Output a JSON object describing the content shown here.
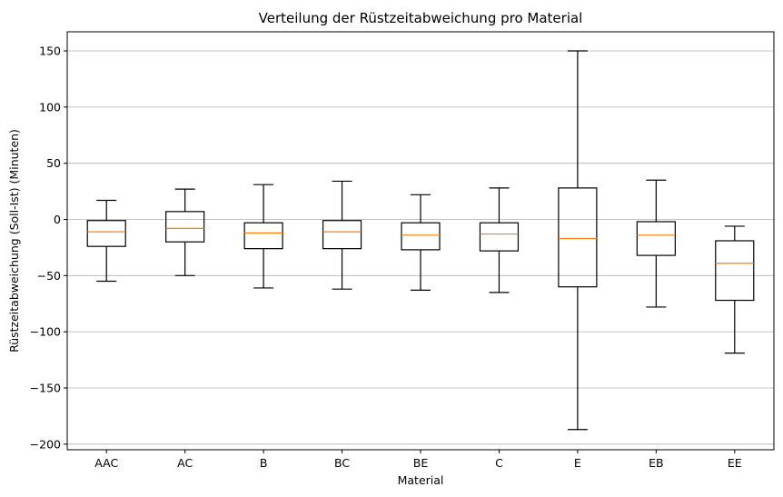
{
  "chart_data": {
    "type": "boxplot",
    "title": "Verteilung der Rüstzeitabweichung pro Material",
    "xlabel": "Material",
    "ylabel": "Rüstzeitabweichung (Soll-Ist) (Minuten)",
    "ylim": [
      -205,
      167
    ],
    "yticks": [
      -200,
      -150,
      -100,
      -50,
      0,
      50,
      100,
      150
    ],
    "ytick_labels": [
      "−200",
      "−150",
      "−100",
      "−50",
      "0",
      "50",
      "100",
      "150"
    ],
    "grid": "horizontal",
    "categories": [
      "AAC",
      "AC",
      "B",
      "BC",
      "BE",
      "C",
      "E",
      "EB",
      "EE"
    ],
    "boxes": [
      {
        "whisker_low": -55,
        "q1": -24,
        "median": -11,
        "q3": -1,
        "whisker_high": 17
      },
      {
        "whisker_low": -50,
        "q1": -20,
        "median": -8,
        "q3": 7,
        "whisker_high": 27
      },
      {
        "whisker_low": -61,
        "q1": -26,
        "median": -12,
        "q3": -3,
        "whisker_high": 31
      },
      {
        "whisker_low": -62,
        "q1": -26,
        "median": -11,
        "q3": -1,
        "whisker_high": 34
      },
      {
        "whisker_low": -63,
        "q1": -27,
        "median": -14,
        "q3": -3,
        "whisker_high": 22
      },
      {
        "whisker_low": -65,
        "q1": -28,
        "median": -13,
        "q3": -3,
        "whisker_high": 28
      },
      {
        "whisker_low": -187,
        "q1": -60,
        "median": -17,
        "q3": 28,
        "whisker_high": 150
      },
      {
        "whisker_low": -78,
        "q1": -32,
        "median": -14,
        "q3": -2,
        "whisker_high": 35
      },
      {
        "whisker_low": -119,
        "q1": -72,
        "median": -39,
        "q3": -19,
        "whisker_high": -6
      }
    ],
    "colors": {
      "box": "#000000",
      "median": "#ff7f0e",
      "grid": "#b0b0b0"
    }
  }
}
